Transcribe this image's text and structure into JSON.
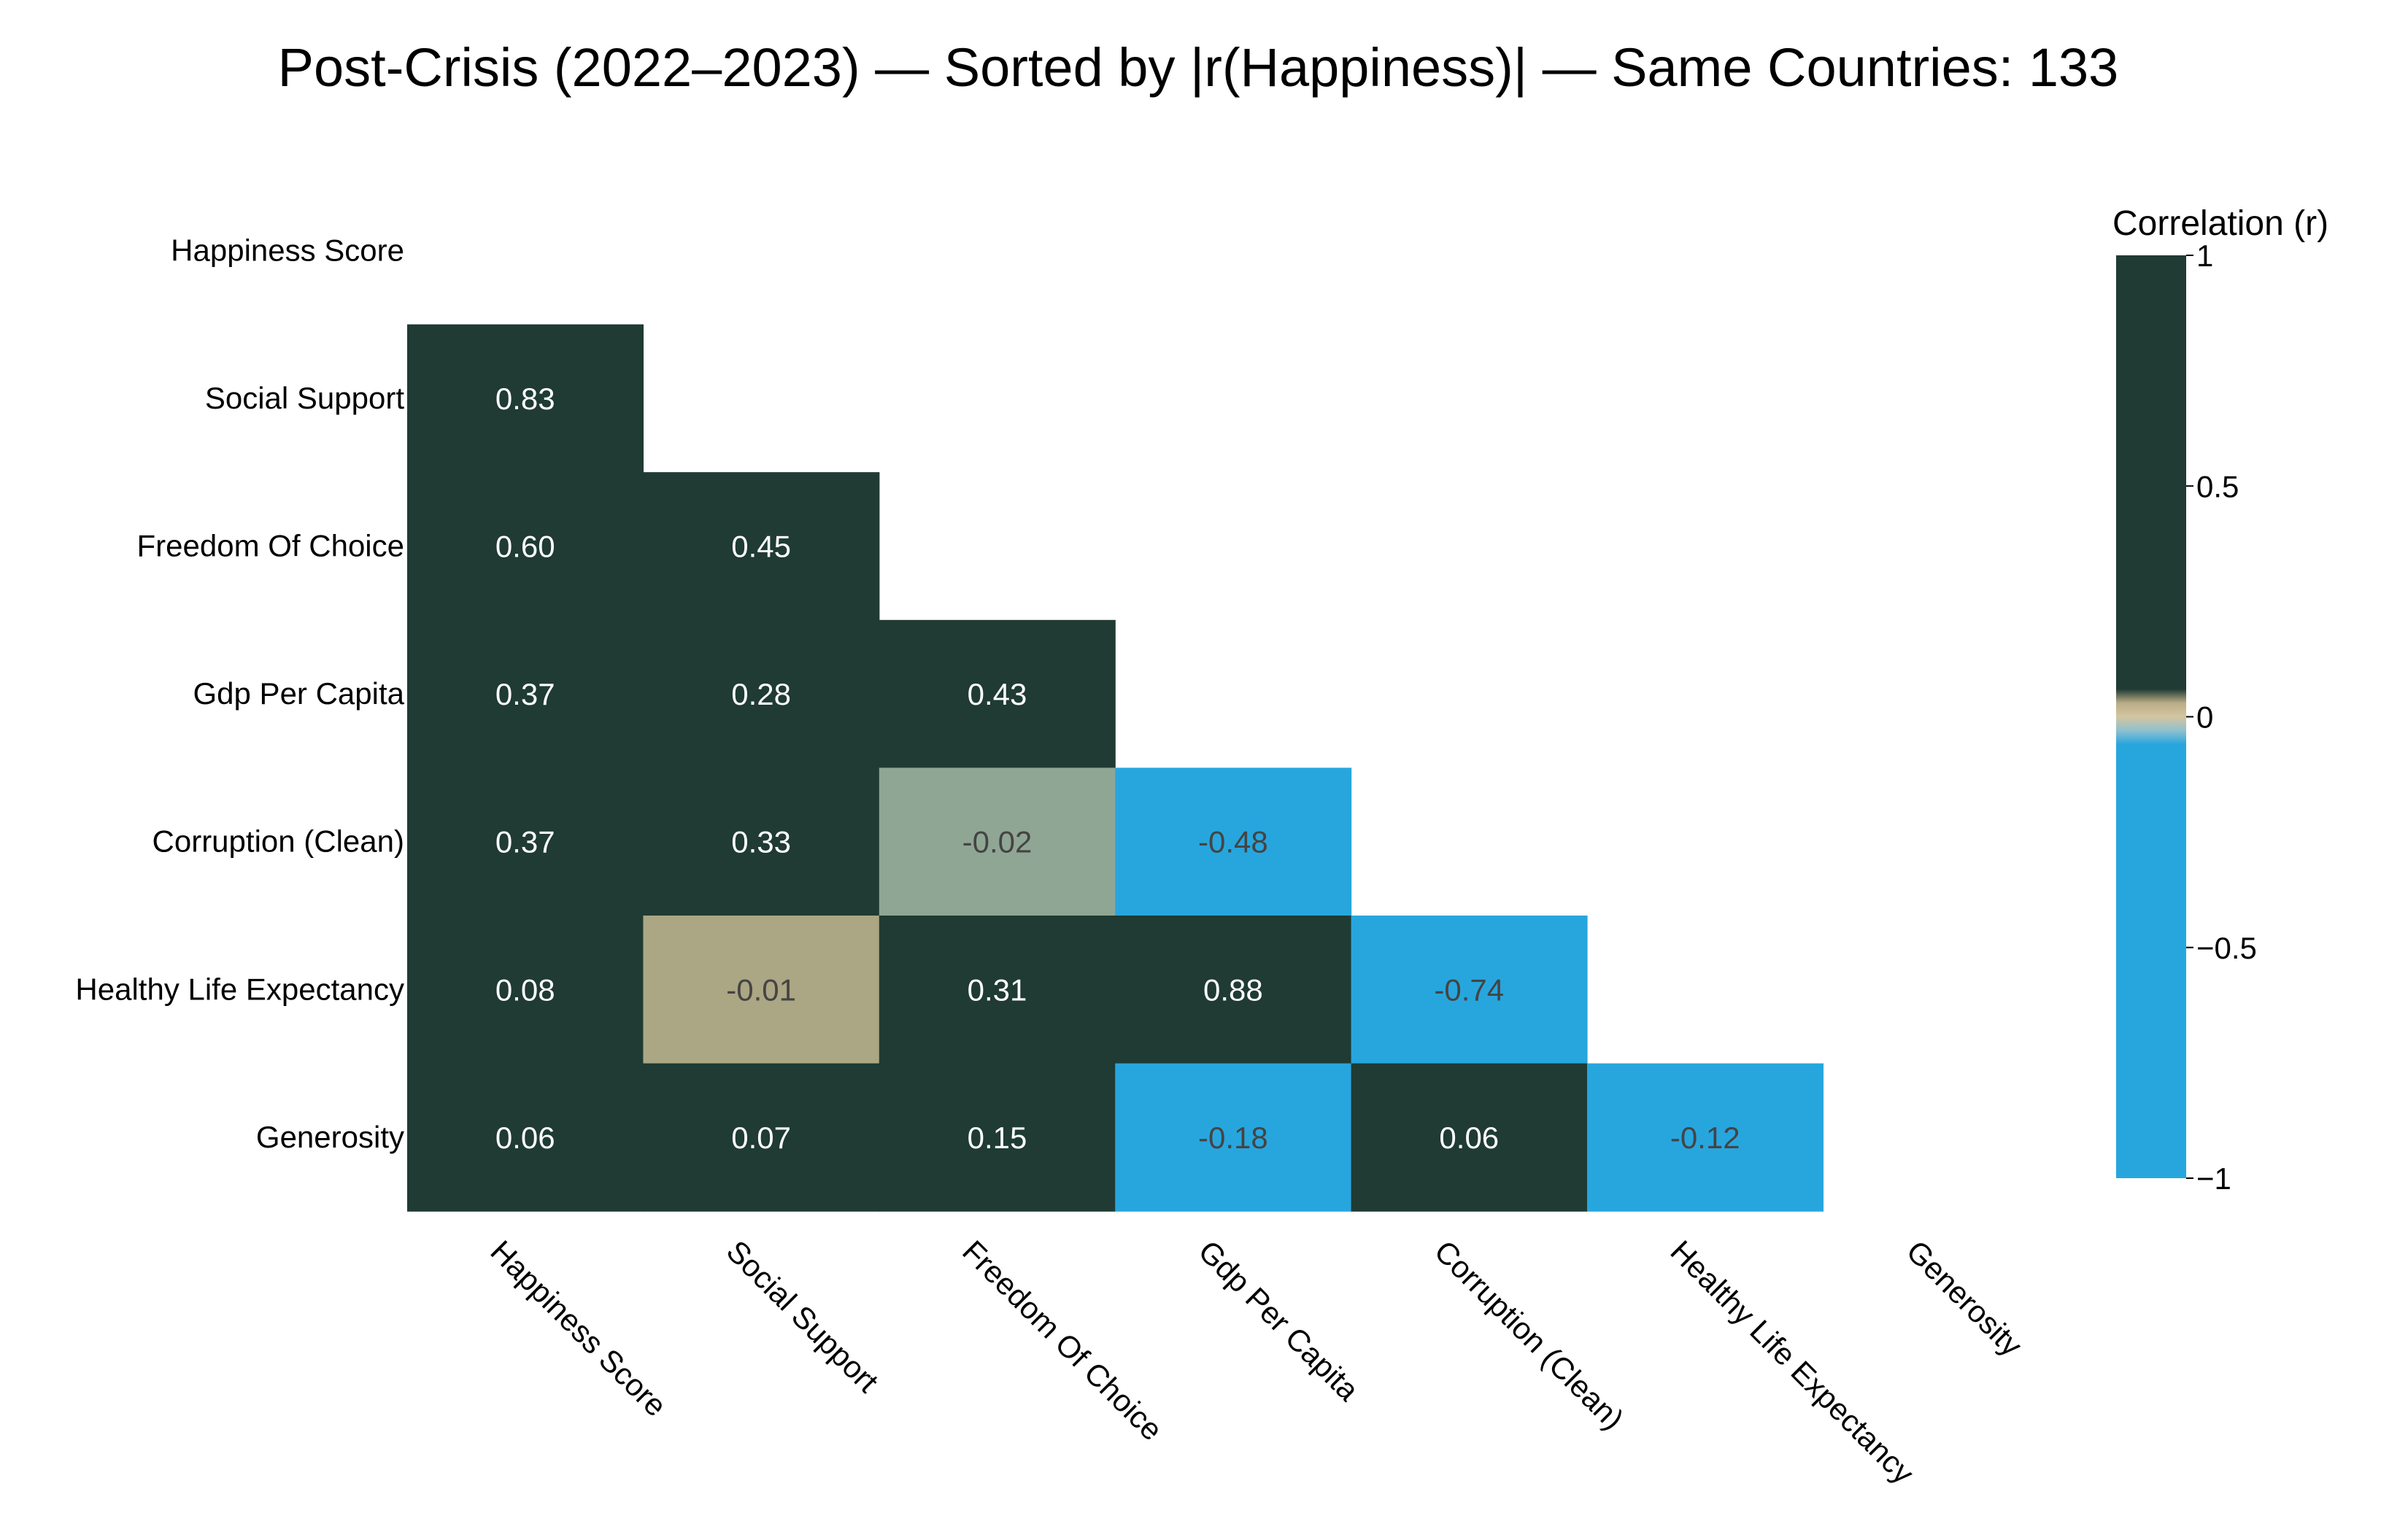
{
  "chart_data": {
    "type": "heatmap",
    "title": "Post-Crisis (2022–2023) — Sorted by |r(Happiness)| — Same Countries: 133",
    "variables": [
      "Happiness Score",
      "Social Support",
      "Freedom Of Choice",
      "Gdp Per Capita",
      "Corruption (Clean)",
      "Healthy Life Expectancy",
      "Generosity"
    ],
    "matrix_lower": [
      [],
      [
        0.83
      ],
      [
        0.6,
        0.45
      ],
      [
        0.37,
        0.28,
        0.43
      ],
      [
        0.37,
        0.33,
        -0.02,
        -0.48
      ],
      [
        0.08,
        -0.01,
        0.31,
        0.88,
        -0.74
      ],
      [
        0.06,
        0.07,
        0.15,
        -0.18,
        0.06,
        -0.12
      ]
    ],
    "mask": "upper triangle and diagonal hidden",
    "value_format": "2 decimals",
    "colorbar": {
      "title": "Correlation (r)",
      "range": [
        -1,
        1
      ],
      "ticks": [
        {
          "value": 1,
          "label": "1"
        },
        {
          "value": 0.5,
          "label": "0.5"
        },
        {
          "value": 0,
          "label": "0"
        },
        {
          "value": -0.5,
          "label": "−0.5"
        },
        {
          "value": -1,
          "label": "−1"
        }
      ]
    },
    "colors": {
      "positive": "#1f3b33",
      "negative": "#27a6de",
      "near_zero_positive": "#aba683",
      "near_zero_negative": "#90a695",
      "text_light": "#ffffff",
      "text_dark": "#444444"
    }
  }
}
